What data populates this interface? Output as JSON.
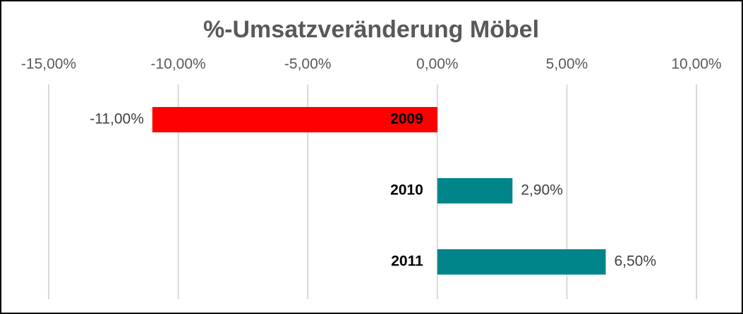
{
  "chart_data": {
    "type": "hbar",
    "title": "%-Umsatzveränderung Möbel",
    "categories": [
      "2009",
      "2010",
      "2011"
    ],
    "values": [
      -11,
      2.9,
      6.5
    ],
    "value_labels": [
      "-11,00%",
      "2,90%",
      "6,50%"
    ],
    "colors": [
      "#ff0000",
      "#00858a",
      "#00858a"
    ],
    "xlim": [
      -15,
      10
    ],
    "xticks": [
      {
        "value": -15,
        "label": "-15,00%"
      },
      {
        "value": -10,
        "label": "-10,00%"
      },
      {
        "value": -5,
        "label": "-5,00%"
      },
      {
        "value": 0,
        "label": "0,00%"
      },
      {
        "value": 5,
        "label": "5,00%"
      },
      {
        "value": 10,
        "label": "10,00%"
      }
    ],
    "grid": true
  }
}
